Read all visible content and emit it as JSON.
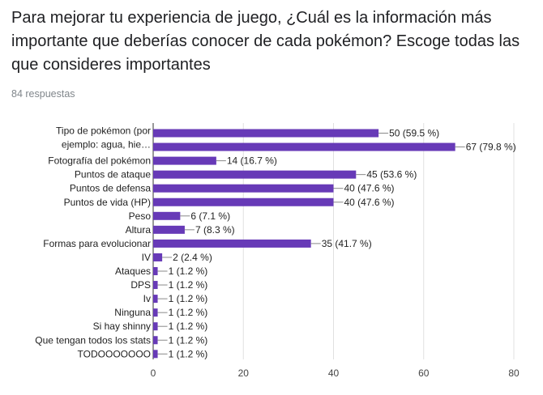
{
  "question": {
    "title": "Para mejorar tu experiencia de juego, ¿Cuál es la información más importante que deberías conocer de cada pokémon? Escoge todas las que consideres importantes",
    "responses": "84 respuestas"
  },
  "colors": {
    "bar": "#673ab7",
    "grid": "#e0e0e0",
    "text": "#222222"
  },
  "chart_data": {
    "type": "bar",
    "orientation": "horizontal",
    "xlim": [
      0,
      80
    ],
    "xticks": [
      0,
      20,
      40,
      60,
      80
    ],
    "grid": true,
    "categories": [
      "Tipo de pokémon (por ejemplo: agua, hie…",
      "",
      "Fotografía del pokémon",
      "Puntos de ataque",
      "Puntos de defensa",
      "Puntos de vida (HP)",
      "Peso",
      "Altura",
      "Formas para evolucionar",
      "IV",
      "Ataques",
      "DPS",
      "Iv",
      "Ninguna",
      "Si hay shinny",
      "Que tengan todos los stats",
      "TODOOOOOOO"
    ],
    "category_label_lines": [
      [
        "Tipo de pokémon (por",
        "ejemplo: agua, hie…"
      ],
      [],
      [
        "Fotografía del pokémon"
      ],
      [
        "Puntos de ataque"
      ],
      [
        "Puntos de defensa"
      ],
      [
        "Puntos de vida (HP)"
      ],
      [
        "Peso"
      ],
      [
        "Altura"
      ],
      [
        "Formas para evolucionar"
      ],
      [
        "IV"
      ],
      [
        "Ataques"
      ],
      [
        "DPS"
      ],
      [
        "Iv"
      ],
      [
        "Ninguna"
      ],
      [
        "Si hay shinny"
      ],
      [
        "Que tengan todos los stats"
      ],
      [
        "TODOOOOOOO"
      ]
    ],
    "values": [
      50,
      67,
      14,
      45,
      40,
      40,
      6,
      7,
      35,
      2,
      1,
      1,
      1,
      1,
      1,
      1,
      1
    ],
    "value_labels": [
      "50 (59.5 %)",
      "67 (79.8 %)",
      "14 (16.7 %)",
      "45 (53.6 %)",
      "40 (47.6 %)",
      "40 (47.6 %)",
      "6 (7.1 %)",
      "7 (8.3 %)",
      "35 (41.7 %)",
      "2 (2.4 %)",
      "1 (1.2 %)",
      "1 (1.2 %)",
      "1 (1.2 %)",
      "1 (1.2 %)",
      "1 (1.2 %)",
      "1 (1.2 %)",
      "1 (1.2 %)"
    ]
  }
}
